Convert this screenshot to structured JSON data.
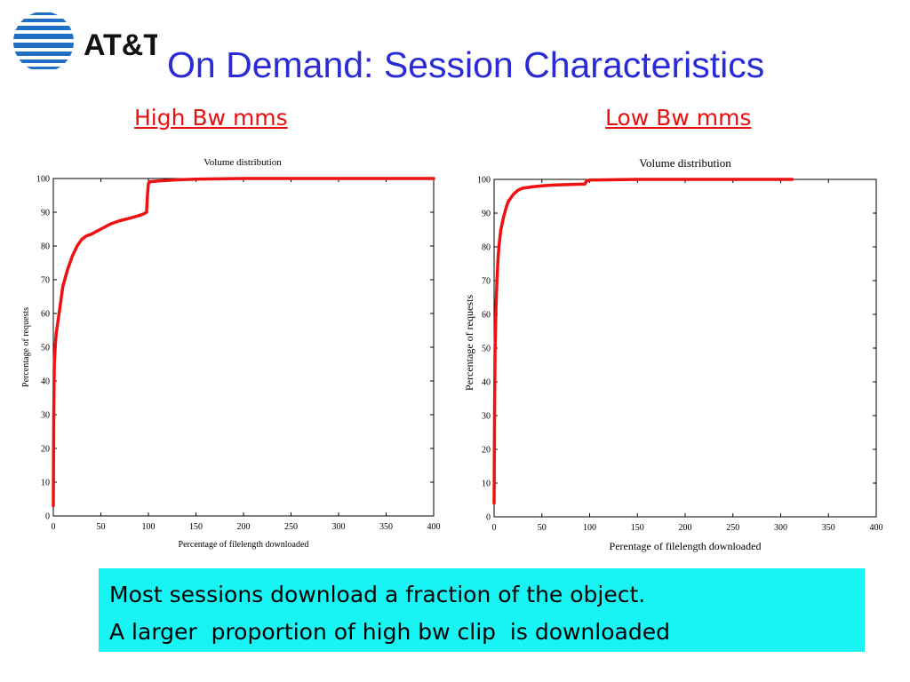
{
  "header": {
    "logo_text": "AT&T",
    "title": "On Demand: Session Characteristics"
  },
  "colors": {
    "title": "#2b2bd6",
    "subtitle": "#e81010",
    "series": "#ee1111",
    "note_background": "#18f4f4"
  },
  "chart_data": [
    {
      "type": "line",
      "subtitle": "High Bw mms",
      "title": "Volume distribution",
      "xlabel": "Percentage of filelength downloaded",
      "ylabel": "Percentage of requests",
      "xlim": [
        0,
        400
      ],
      "ylim": [
        0,
        100
      ],
      "xticks": [
        0,
        50,
        100,
        150,
        200,
        250,
        300,
        350,
        400
      ],
      "yticks": [
        0,
        10,
        20,
        30,
        40,
        50,
        60,
        70,
        80,
        90,
        100
      ],
      "grid": false,
      "series": [
        {
          "x": [
            0,
            0.5,
            1,
            2,
            3,
            5,
            8,
            10,
            15,
            20,
            25,
            30,
            35,
            40,
            50,
            60,
            70,
            80,
            90,
            95,
            98,
            99,
            100,
            101,
            110,
            130,
            150,
            200,
            250,
            300,
            350,
            400
          ],
          "y": [
            3,
            30,
            45,
            50,
            54,
            58,
            64,
            68,
            73,
            77,
            80,
            82,
            83,
            83.5,
            85,
            86.5,
            87.5,
            88.2,
            89,
            89.5,
            90,
            95,
            98.5,
            99,
            99.3,
            99.6,
            99.8,
            100,
            100,
            100,
            100,
            100
          ]
        }
      ]
    },
    {
      "type": "line",
      "subtitle": "Low Bw mms",
      "title": "Volume distribution",
      "xlabel": "Perentage of filelength downloaded",
      "ylabel": "Percentage of requests",
      "xlim": [
        0,
        400
      ],
      "ylim": [
        0,
        100
      ],
      "xticks": [
        0,
        50,
        100,
        150,
        200,
        250,
        300,
        350,
        400
      ],
      "yticks": [
        0,
        10,
        20,
        30,
        40,
        50,
        60,
        70,
        80,
        90,
        100
      ],
      "grid": false,
      "series": [
        {
          "x": [
            0,
            0.5,
            1,
            2,
            3,
            4,
            5,
            7,
            10,
            13,
            15,
            20,
            25,
            30,
            40,
            50,
            60,
            80,
            95,
            97,
            100,
            150,
            200,
            250,
            300,
            312
          ],
          "y": [
            4,
            30,
            50,
            62,
            70,
            76,
            80,
            85,
            89,
            92,
            93.5,
            95.5,
            96.8,
            97.4,
            97.8,
            98.1,
            98.3,
            98.5,
            98.6,
            99.6,
            99.8,
            100,
            100,
            100,
            100,
            100
          ]
        }
      ]
    }
  ],
  "note": {
    "line1": "Most sessions download a fraction of the object.",
    "line2": "A larger  proportion of high bw clip  is downloaded"
  }
}
